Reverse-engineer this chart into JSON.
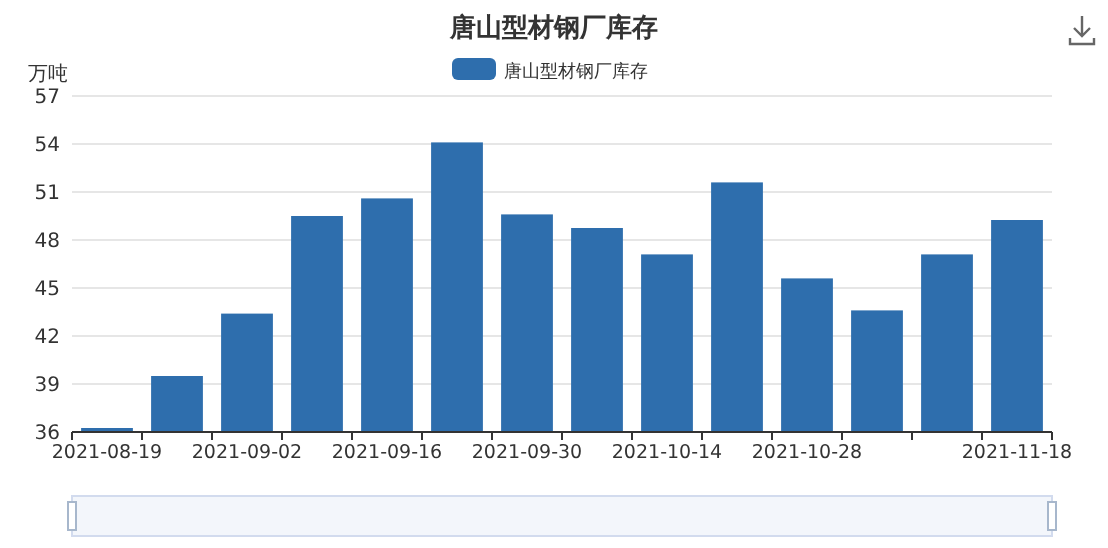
{
  "chart_data": {
    "type": "bar",
    "title": "唐山型材钢厂库存",
    "ylabel": "万吨",
    "categories": [
      "2021-08-19",
      null,
      "2021-09-02",
      null,
      "2021-09-16",
      null,
      "2021-09-30",
      null,
      "2021-10-14",
      null,
      "2021-10-28",
      null,
      null,
      "2021-11-18"
    ],
    "series": [
      {
        "name": "唐山型材钢厂库存",
        "color": "#2e6ead",
        "values": [
          36.25,
          39.5,
          43.4,
          49.5,
          50.6,
          54.1,
          49.6,
          48.75,
          47.1,
          51.6,
          45.6,
          43.6,
          47.1,
          49.25
        ]
      }
    ],
    "ylim": [
      36,
      57
    ],
    "yticks": [
      36,
      39,
      42,
      45,
      48,
      51,
      54,
      57
    ],
    "grid": "y",
    "legend": "top"
  }
}
